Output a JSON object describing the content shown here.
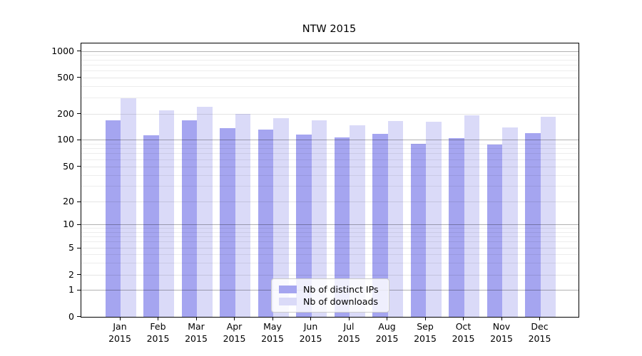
{
  "figure": {
    "title": "NTW 2015"
  },
  "chart_data": {
    "type": "bar",
    "title": "NTW 2015",
    "categories": [
      "Jan",
      "Feb",
      "Mar",
      "Apr",
      "May",
      "Jun",
      "Jul",
      "Aug",
      "Sep",
      "Oct",
      "Nov",
      "Dec"
    ],
    "category_year": "2015",
    "series": [
      {
        "name": "Nb of distinct IPs",
        "color": "#a5a5f0",
        "values": [
          170,
          114,
          168,
          138,
          131,
          115,
          107,
          118,
          90,
          104,
          89,
          119
        ]
      },
      {
        "name": "Nb of downloads",
        "color": "#dadaf8",
        "values": [
          295,
          220,
          239,
          202,
          180,
          170,
          149,
          166,
          163,
          194,
          141,
          187
        ]
      }
    ],
    "xlabel": "",
    "ylabel": "",
    "yscale": "symlog",
    "ylim": [
      0,
      1000
    ],
    "y_ticks": [
      0,
      1,
      2,
      5,
      10,
      20,
      50,
      100,
      200,
      500,
      1000
    ],
    "y_major_gridlines": [
      1,
      10,
      100,
      1000
    ],
    "grid": true,
    "legend_position": "lower center"
  },
  "colors": {
    "bar_dark": "#a5a5f0",
    "bar_light": "#dadaf8",
    "grid_major": "#b2b2b2",
    "grid_minor": "#e8e8e8",
    "spine": "#000000",
    "background": "#ffffff",
    "legend_border": "#cccccc"
  }
}
